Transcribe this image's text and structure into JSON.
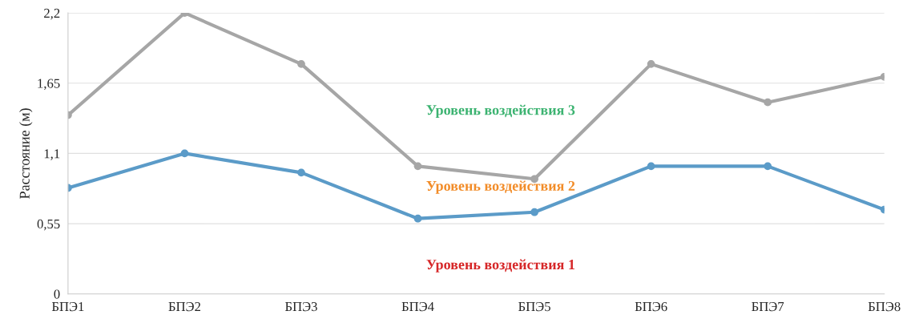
{
  "chart_data": {
    "type": "line",
    "ylabel": "Расстояние (м)",
    "categories": [
      "БПЭ1",
      "БПЭ2",
      "БПЭ3",
      "БПЭ4",
      "БПЭ5",
      "БПЭ6",
      "БПЭ7",
      "БПЭ8"
    ],
    "series": [
      {
        "color": "#a6a6a6",
        "values": [
          1.4,
          2.2,
          1.8,
          1.0,
          0.9,
          1.8,
          1.5,
          1.7
        ]
      },
      {
        "color": "#5b9bc8",
        "values": [
          0.83,
          1.1,
          0.95,
          0.59,
          0.64,
          1.0,
          1.0,
          0.66
        ]
      }
    ],
    "ylim": [
      0,
      2.2
    ],
    "yticks": [
      {
        "value": 0,
        "label": "0"
      },
      {
        "value": 0.55,
        "label": "0,55"
      },
      {
        "value": 1.1,
        "label": "1,1"
      },
      {
        "value": 1.65,
        "label": "1,65"
      },
      {
        "value": 2.2,
        "label": "2,2"
      }
    ],
    "grid": "y",
    "marker": "circle",
    "line_style": "solid",
    "annotations": [
      "Уровень воздействия 3",
      "Уровень воздействия 2",
      "Уровень воздействия 1"
    ]
  }
}
